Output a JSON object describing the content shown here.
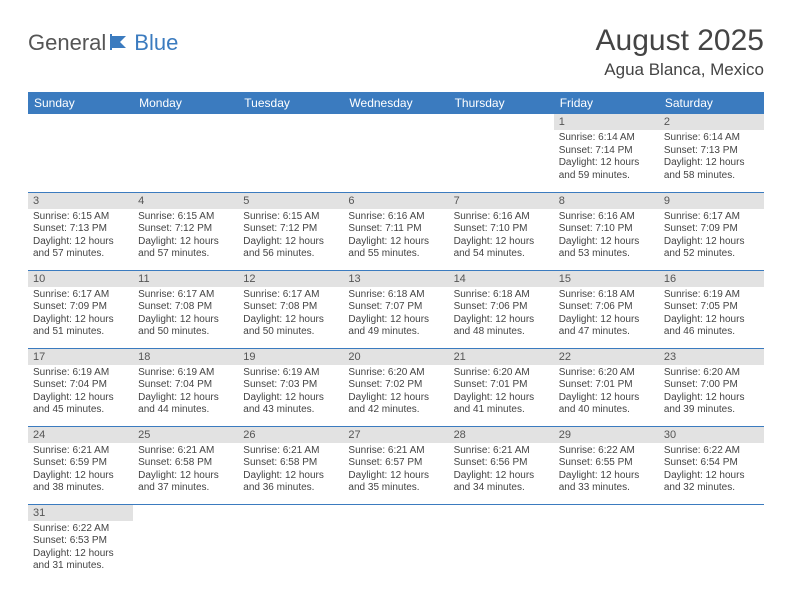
{
  "logo": {
    "part1": "General",
    "part2": "Blue"
  },
  "title": "August 2025",
  "location": "Agua Blanca, Mexico",
  "colors": {
    "header_bg": "#3b7bbf",
    "header_text": "#ffffff",
    "daynum_bg": "#e2e2e2",
    "border": "#3b7bbf",
    "text": "#444444"
  },
  "day_headers": [
    "Sunday",
    "Monday",
    "Tuesday",
    "Wednesday",
    "Thursday",
    "Friday",
    "Saturday"
  ],
  "weeks": [
    [
      null,
      null,
      null,
      null,
      null,
      {
        "n": "1",
        "sr": "Sunrise: 6:14 AM",
        "ss": "Sunset: 7:14 PM",
        "dl": "Daylight: 12 hours and 59 minutes."
      },
      {
        "n": "2",
        "sr": "Sunrise: 6:14 AM",
        "ss": "Sunset: 7:13 PM",
        "dl": "Daylight: 12 hours and 58 minutes."
      }
    ],
    [
      {
        "n": "3",
        "sr": "Sunrise: 6:15 AM",
        "ss": "Sunset: 7:13 PM",
        "dl": "Daylight: 12 hours and 57 minutes."
      },
      {
        "n": "4",
        "sr": "Sunrise: 6:15 AM",
        "ss": "Sunset: 7:12 PM",
        "dl": "Daylight: 12 hours and 57 minutes."
      },
      {
        "n": "5",
        "sr": "Sunrise: 6:15 AM",
        "ss": "Sunset: 7:12 PM",
        "dl": "Daylight: 12 hours and 56 minutes."
      },
      {
        "n": "6",
        "sr": "Sunrise: 6:16 AM",
        "ss": "Sunset: 7:11 PM",
        "dl": "Daylight: 12 hours and 55 minutes."
      },
      {
        "n": "7",
        "sr": "Sunrise: 6:16 AM",
        "ss": "Sunset: 7:10 PM",
        "dl": "Daylight: 12 hours and 54 minutes."
      },
      {
        "n": "8",
        "sr": "Sunrise: 6:16 AM",
        "ss": "Sunset: 7:10 PM",
        "dl": "Daylight: 12 hours and 53 minutes."
      },
      {
        "n": "9",
        "sr": "Sunrise: 6:17 AM",
        "ss": "Sunset: 7:09 PM",
        "dl": "Daylight: 12 hours and 52 minutes."
      }
    ],
    [
      {
        "n": "10",
        "sr": "Sunrise: 6:17 AM",
        "ss": "Sunset: 7:09 PM",
        "dl": "Daylight: 12 hours and 51 minutes."
      },
      {
        "n": "11",
        "sr": "Sunrise: 6:17 AM",
        "ss": "Sunset: 7:08 PM",
        "dl": "Daylight: 12 hours and 50 minutes."
      },
      {
        "n": "12",
        "sr": "Sunrise: 6:17 AM",
        "ss": "Sunset: 7:08 PM",
        "dl": "Daylight: 12 hours and 50 minutes."
      },
      {
        "n": "13",
        "sr": "Sunrise: 6:18 AM",
        "ss": "Sunset: 7:07 PM",
        "dl": "Daylight: 12 hours and 49 minutes."
      },
      {
        "n": "14",
        "sr": "Sunrise: 6:18 AM",
        "ss": "Sunset: 7:06 PM",
        "dl": "Daylight: 12 hours and 48 minutes."
      },
      {
        "n": "15",
        "sr": "Sunrise: 6:18 AM",
        "ss": "Sunset: 7:06 PM",
        "dl": "Daylight: 12 hours and 47 minutes."
      },
      {
        "n": "16",
        "sr": "Sunrise: 6:19 AM",
        "ss": "Sunset: 7:05 PM",
        "dl": "Daylight: 12 hours and 46 minutes."
      }
    ],
    [
      {
        "n": "17",
        "sr": "Sunrise: 6:19 AM",
        "ss": "Sunset: 7:04 PM",
        "dl": "Daylight: 12 hours and 45 minutes."
      },
      {
        "n": "18",
        "sr": "Sunrise: 6:19 AM",
        "ss": "Sunset: 7:04 PM",
        "dl": "Daylight: 12 hours and 44 minutes."
      },
      {
        "n": "19",
        "sr": "Sunrise: 6:19 AM",
        "ss": "Sunset: 7:03 PM",
        "dl": "Daylight: 12 hours and 43 minutes."
      },
      {
        "n": "20",
        "sr": "Sunrise: 6:20 AM",
        "ss": "Sunset: 7:02 PM",
        "dl": "Daylight: 12 hours and 42 minutes."
      },
      {
        "n": "21",
        "sr": "Sunrise: 6:20 AM",
        "ss": "Sunset: 7:01 PM",
        "dl": "Daylight: 12 hours and 41 minutes."
      },
      {
        "n": "22",
        "sr": "Sunrise: 6:20 AM",
        "ss": "Sunset: 7:01 PM",
        "dl": "Daylight: 12 hours and 40 minutes."
      },
      {
        "n": "23",
        "sr": "Sunrise: 6:20 AM",
        "ss": "Sunset: 7:00 PM",
        "dl": "Daylight: 12 hours and 39 minutes."
      }
    ],
    [
      {
        "n": "24",
        "sr": "Sunrise: 6:21 AM",
        "ss": "Sunset: 6:59 PM",
        "dl": "Daylight: 12 hours and 38 minutes."
      },
      {
        "n": "25",
        "sr": "Sunrise: 6:21 AM",
        "ss": "Sunset: 6:58 PM",
        "dl": "Daylight: 12 hours and 37 minutes."
      },
      {
        "n": "26",
        "sr": "Sunrise: 6:21 AM",
        "ss": "Sunset: 6:58 PM",
        "dl": "Daylight: 12 hours and 36 minutes."
      },
      {
        "n": "27",
        "sr": "Sunrise: 6:21 AM",
        "ss": "Sunset: 6:57 PM",
        "dl": "Daylight: 12 hours and 35 minutes."
      },
      {
        "n": "28",
        "sr": "Sunrise: 6:21 AM",
        "ss": "Sunset: 6:56 PM",
        "dl": "Daylight: 12 hours and 34 minutes."
      },
      {
        "n": "29",
        "sr": "Sunrise: 6:22 AM",
        "ss": "Sunset: 6:55 PM",
        "dl": "Daylight: 12 hours and 33 minutes."
      },
      {
        "n": "30",
        "sr": "Sunrise: 6:22 AM",
        "ss": "Sunset: 6:54 PM",
        "dl": "Daylight: 12 hours and 32 minutes."
      }
    ],
    [
      {
        "n": "31",
        "sr": "Sunrise: 6:22 AM",
        "ss": "Sunset: 6:53 PM",
        "dl": "Daylight: 12 hours and 31 minutes."
      },
      null,
      null,
      null,
      null,
      null,
      null
    ]
  ]
}
